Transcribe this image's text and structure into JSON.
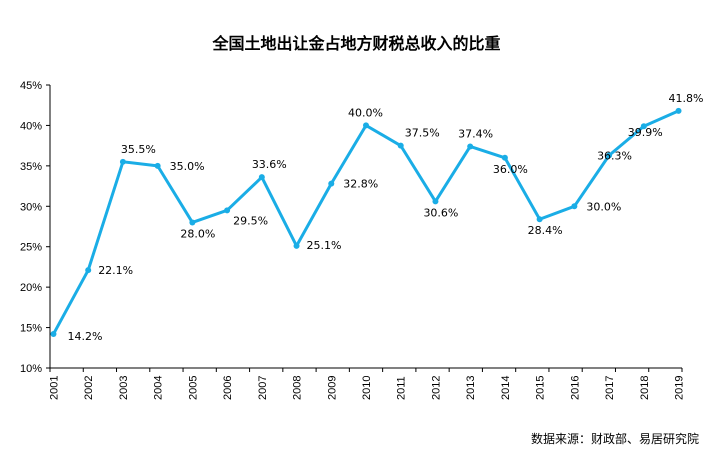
{
  "title": "全国土地出让金占地方财税总收入的比重",
  "source": "数据来源：财政部、易居研究院",
  "chart_data": {
    "type": "line",
    "title": "全国土地出让金占地方财税总收入的比重",
    "x": [
      "2001",
      "2002",
      "2003",
      "2004",
      "2005",
      "2006",
      "2007",
      "2008",
      "2009",
      "2010",
      "2011",
      "2012",
      "2013",
      "2014",
      "2015",
      "2016",
      "2017",
      "2018",
      "2019"
    ],
    "series": [
      {
        "values": [
          14.2,
          22.1,
          35.5,
          35.0,
          28.0,
          29.5,
          33.6,
          25.1,
          32.8,
          40.0,
          37.5,
          30.6,
          37.4,
          36.0,
          28.4,
          30.0,
          36.3,
          39.9,
          41.8
        ],
        "labels": [
          "14.2%",
          "22.1%",
          "35.5%",
          "35.0%",
          "28.0%",
          "29.5%",
          "33.6%",
          "25.1%",
          "32.8%",
          "40.0%",
          "37.5%",
          "30.6%",
          "37.4%",
          "36.0%",
          "28.4%",
          "30.0%",
          "36.3%",
          "39.9%",
          "41.8%"
        ],
        "color": "#1AADE6"
      }
    ],
    "yticks": [
      "10%",
      "15%",
      "20%",
      "25%",
      "30%",
      "35%",
      "40%",
      "45%"
    ],
    "ylim": [
      10,
      45
    ],
    "grid": false,
    "legend": "none"
  }
}
